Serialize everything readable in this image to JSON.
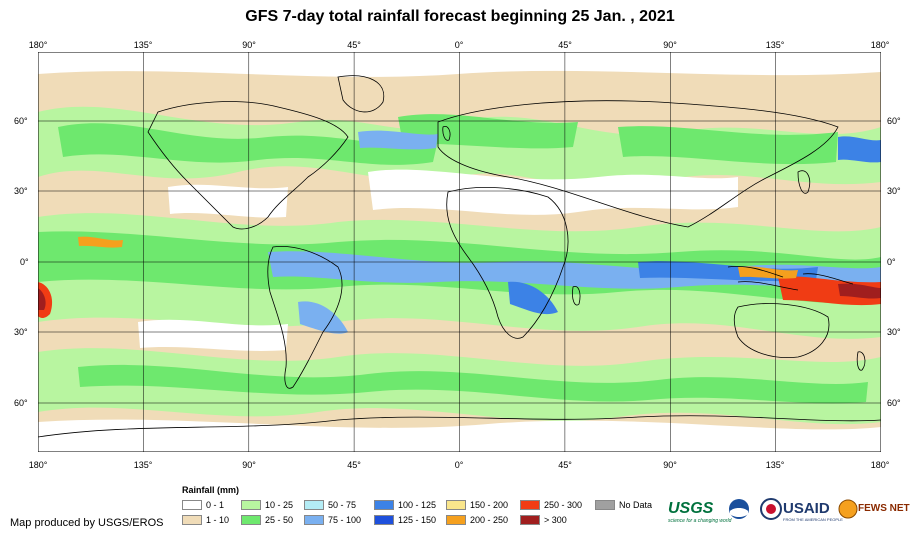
{
  "title": "GFS 7-day total rainfall forecast beginning 25 Jan. , 2021",
  "lon_labels": [
    "180°",
    "135°",
    "90°",
    "45°",
    "0°",
    "45°",
    "90°",
    "135°",
    "180°"
  ],
  "lat_labels": [
    "60°",
    "30°",
    "0°",
    "30°",
    "60°"
  ],
  "legend": {
    "title": "Rainfall (mm)",
    "items": [
      {
        "label": "0 - 1",
        "color": "#ffffff"
      },
      {
        "label": "1 - 10",
        "color": "#f0dcb8"
      },
      {
        "label": "10 - 25",
        "color": "#b8f5a0"
      },
      {
        "label": "25 - 50",
        "color": "#6ee86e"
      },
      {
        "label": "50 - 75",
        "color": "#b4ecf5"
      },
      {
        "label": "75 - 100",
        "color": "#7ab0f0"
      },
      {
        "label": "100 - 125",
        "color": "#3c82e6"
      },
      {
        "label": "125 - 150",
        "color": "#1e50dc"
      },
      {
        "label": "150 - 200",
        "color": "#fae68c"
      },
      {
        "label": "200 - 250",
        "color": "#f5a01e"
      },
      {
        "label": "250 - 300",
        "color": "#f03c14"
      },
      {
        "label": "> 300",
        "color": "#a01e1e"
      },
      {
        "label": "No Data",
        "color": "#a0a0a0"
      }
    ]
  },
  "credit": "Map produced by USGS/EROS",
  "logos": {
    "usgs": "USGS",
    "usgs_tagline": "science for a changing world",
    "usaid": "USAID",
    "usaid_tagline": "FROM THE AMERICAN PEOPLE",
    "fews": "FEWS NET"
  }
}
